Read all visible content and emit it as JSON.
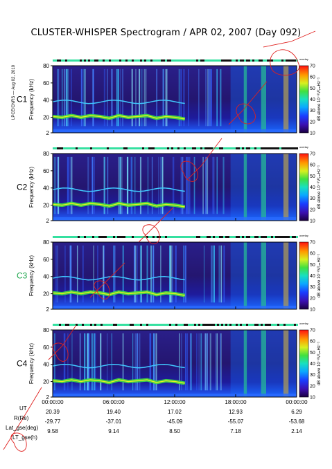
{
  "title": "CLUSTER-WHISPER Spectrogram / APR 02, 2007 (Day 092)",
  "credit": "LPCE/CNRS — Aug 02, 2010",
  "colors": {
    "c3_label": "#1ca64c",
    "annotation": "#e0201e"
  },
  "chart_data": {
    "type": "heatmap",
    "panels": [
      {
        "label": "C1",
        "label_color": "#000000"
      },
      {
        "label": "C2",
        "label_color": "#000000"
      },
      {
        "label": "C3",
        "label_color": "#1ca64c"
      },
      {
        "label": "C4",
        "label_color": "#000000"
      }
    ],
    "ylabel": "Frequency (kHz)",
    "y_ticks": [
      "80",
      "60",
      "40",
      "20",
      "2"
    ],
    "ylim": [
      2,
      80
    ],
    "colorbar": {
      "label": "dB above 10⁻⁸V²ᵣₘHz⁻¹",
      "ticks": [
        "70",
        "60",
        "50",
        "40",
        "30",
        "20",
        "10"
      ],
      "range": [
        10,
        70
      ]
    },
    "mode_tag": "overlay",
    "x_ticks": [
      "00:00:00",
      "06:00:00",
      "12:00:00",
      "18:00:00",
      "00:00:00"
    ],
    "x_range_hours": [
      0,
      24
    ],
    "ephemeris": {
      "headers": [
        "UT",
        "R(Re)",
        "Lat_gse(deg)",
        "LT_gse(h)"
      ],
      "rows": [
        [
          "20.39",
          "19.40",
          "17.02",
          "12.93",
          "6.29"
        ],
        [
          "-29.77",
          "-37.01",
          "-45.09",
          "-55.07",
          "-53.68"
        ],
        [
          "9.58",
          "9.14",
          "8.50",
          "7.18",
          "2.14"
        ]
      ]
    },
    "features": {
      "plasma_line_khz": [
        21,
        20,
        22,
        20,
        22,
        21,
        19,
        22,
        20,
        21,
        22,
        19,
        21,
        20,
        18
      ],
      "wideband_hours": [
        18.8,
        19.1,
        20.5,
        21.0,
        22.7,
        23.2
      ]
    }
  }
}
